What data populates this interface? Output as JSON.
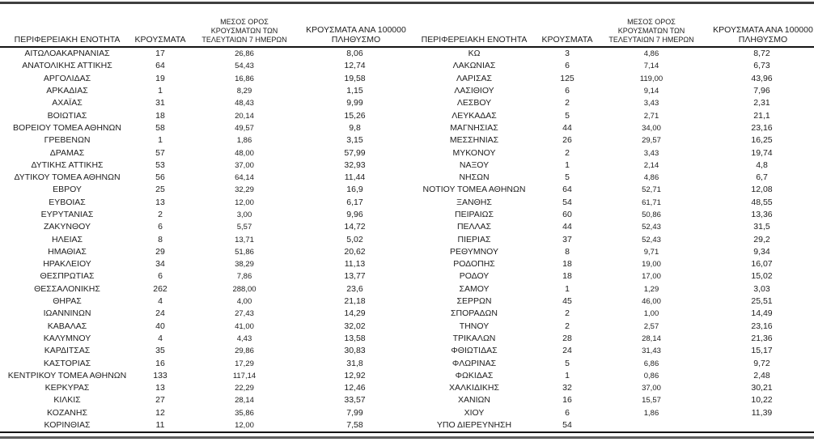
{
  "colors": {
    "text": "#1d1d1d",
    "top_rule": "#3f3f3f",
    "header_rule": "#141414",
    "bottom_rule": "#5f5f5f",
    "background": "#ffffff"
  },
  "chart_data": {
    "type": "table",
    "column_headers": [
      "ΠΕΡΙΦΕΡΕΙΑΚΗ ΕΝΟΤΗΤΑ",
      "ΚΡΟΥΣΜΑΤΑ",
      "ΜΕΣΟΣ ΟΡΟΣ ΚΡΟΥΣΜΑΤΩΝ ΤΩΝ ΤΕΛΕΥΤΑΙΩΝ 7 ΗΜΕΡΩΝ",
      "ΚΡΟΥΣΜΑΤΑ ΑΝΑ 100000 ΠΛΗΘΥΣΜΟ"
    ],
    "left_table": {
      "rows": [
        [
          "ΑΙΤΩΛΟΑΚΑΡΝΑΝΙΑΣ",
          "17",
          "26,86",
          "8,06"
        ],
        [
          "ΑΝΑΤΟΛΙΚΗΣ ΑΤΤΙΚΗΣ",
          "64",
          "54,43",
          "12,74"
        ],
        [
          "ΑΡΓΟΛΙΔΑΣ",
          "19",
          "16,86",
          "19,58"
        ],
        [
          "ΑΡΚΑΔΙΑΣ",
          "1",
          "8,29",
          "1,15"
        ],
        [
          "ΑΧΑΪΑΣ",
          "31",
          "48,43",
          "9,99"
        ],
        [
          "ΒΟΙΩΤΙΑΣ",
          "18",
          "20,14",
          "15,26"
        ],
        [
          "ΒΟΡΕΙΟΥ ΤΟΜΕΑ ΑΘΗΝΩΝ",
          "58",
          "49,57",
          "9,8"
        ],
        [
          "ΓΡΕΒΕΝΩΝ",
          "1",
          "1,86",
          "3,15"
        ],
        [
          "ΔΡΑΜΑΣ",
          "57",
          "48,00",
          "57,99"
        ],
        [
          "ΔΥΤΙΚΗΣ ΑΤΤΙΚΗΣ",
          "53",
          "37,00",
          "32,93"
        ],
        [
          "ΔΥΤΙΚΟΥ ΤΟΜΕΑ ΑΘΗΝΩΝ",
          "56",
          "64,14",
          "11,44"
        ],
        [
          "ΕΒΡΟΥ",
          "25",
          "32,29",
          "16,9"
        ],
        [
          "ΕΥΒΟΙΑΣ",
          "13",
          "12,00",
          "6,17"
        ],
        [
          "ΕΥΡΥΤΑΝΙΑΣ",
          "2",
          "3,00",
          "9,96"
        ],
        [
          "ΖΑΚΥΝΘΟΥ",
          "6",
          "5,57",
          "14,72"
        ],
        [
          "ΗΛΕΙΑΣ",
          "8",
          "13,71",
          "5,02"
        ],
        [
          "ΗΜΑΘΙΑΣ",
          "29",
          "51,86",
          "20,62"
        ],
        [
          "ΗΡΑΚΛΕΙΟΥ",
          "34",
          "38,29",
          "11,13"
        ],
        [
          "ΘΕΣΠΡΩΤΙΑΣ",
          "6",
          "7,86",
          "13,77"
        ],
        [
          "ΘΕΣΣΑΛΟΝΙΚΗΣ",
          "262",
          "288,00",
          "23,6"
        ],
        [
          "ΘΗΡΑΣ",
          "4",
          "4,00",
          "21,18"
        ],
        [
          "ΙΩΑΝΝΙΝΩΝ",
          "24",
          "27,43",
          "14,29"
        ],
        [
          "ΚΑΒΑΛΑΣ",
          "40",
          "41,00",
          "32,02"
        ],
        [
          "ΚΑΛΥΜΝΟΥ",
          "4",
          "4,43",
          "13,58"
        ],
        [
          "ΚΑΡΔΙΤΣΑΣ",
          "35",
          "29,86",
          "30,83"
        ],
        [
          "ΚΑΣΤΟΡΙΑΣ",
          "16",
          "17,29",
          "31,8"
        ],
        [
          "ΚΕΝΤΡΙΚΟΥ ΤΟΜΕΑ ΑΘΗΝΩΝ",
          "133",
          "117,14",
          "12,92"
        ],
        [
          "ΚΕΡΚΥΡΑΣ",
          "13",
          "22,29",
          "12,46"
        ],
        [
          "ΚΙΛΚΙΣ",
          "27",
          "28,14",
          "33,57"
        ],
        [
          "ΚΟΖΑΝΗΣ",
          "12",
          "35,86",
          "7,99"
        ],
        [
          "ΚΟΡΙΝΘΙΑΣ",
          "11",
          "12,00",
          "7,58"
        ]
      ]
    },
    "right_table": {
      "rows": [
        [
          "ΚΩ",
          "3",
          "4,86",
          "8,72"
        ],
        [
          "ΛΑΚΩΝΙΑΣ",
          "6",
          "7,14",
          "6,73"
        ],
        [
          "ΛΑΡΙΣΑΣ",
          "125",
          "119,00",
          "43,96"
        ],
        [
          "ΛΑΣΙΘΙΟΥ",
          "6",
          "9,14",
          "7,96"
        ],
        [
          "ΛΕΣΒΟΥ",
          "2",
          "3,43",
          "2,31"
        ],
        [
          "ΛΕΥΚΑΔΑΣ",
          "5",
          "2,71",
          "21,1"
        ],
        [
          "ΜΑΓΝΗΣΙΑΣ",
          "44",
          "34,00",
          "23,16"
        ],
        [
          "ΜΕΣΣΗΝΙΑΣ",
          "26",
          "29,57",
          "16,25"
        ],
        [
          "ΜΥΚΟΝΟΥ",
          "2",
          "3,43",
          "19,74"
        ],
        [
          "ΝΑΞΟΥ",
          "1",
          "2,14",
          "4,8"
        ],
        [
          "ΝΗΣΩΝ",
          "5",
          "4,86",
          "6,7"
        ],
        [
          "ΝΟΤΙΟΥ ΤΟΜΕΑ ΑΘΗΝΩΝ",
          "64",
          "52,71",
          "12,08"
        ],
        [
          "ΞΑΝΘΗΣ",
          "54",
          "61,71",
          "48,55"
        ],
        [
          "ΠΕΙΡΑΙΩΣ",
          "60",
          "50,86",
          "13,36"
        ],
        [
          "ΠΕΛΛΑΣ",
          "44",
          "52,43",
          "31,5"
        ],
        [
          "ΠΙΕΡΙΑΣ",
          "37",
          "52,43",
          "29,2"
        ],
        [
          "ΡΕΘΥΜΝΟΥ",
          "8",
          "9,71",
          "9,34"
        ],
        [
          "ΡΟΔΟΠΗΣ",
          "18",
          "19,00",
          "16,07"
        ],
        [
          "ΡΟΔΟΥ",
          "18",
          "17,00",
          "15,02"
        ],
        [
          "ΣΑΜΟΥ",
          "1",
          "1,29",
          "3,03"
        ],
        [
          "ΣΕΡΡΩΝ",
          "45",
          "46,00",
          "25,51"
        ],
        [
          "ΣΠΟΡΑΔΩΝ",
          "2",
          "1,00",
          "14,49"
        ],
        [
          "ΤΗΝΟΥ",
          "2",
          "2,57",
          "23,16"
        ],
        [
          "ΤΡΙΚΑΛΩΝ",
          "28",
          "28,14",
          "21,36"
        ],
        [
          "ΦΘΙΩΤΙΔΑΣ",
          "24",
          "31,43",
          "15,17"
        ],
        [
          "ΦΛΩΡΙΝΑΣ",
          "5",
          "6,86",
          "9,72"
        ],
        [
          "ΦΩΚΙΔΑΣ",
          "1",
          "0,86",
          "2,48"
        ],
        [
          "ΧΑΛΚΙΔΙΚΗΣ",
          "32",
          "37,00",
          "30,21"
        ],
        [
          "ΧΑΝΙΩΝ",
          "16",
          "15,57",
          "10,22"
        ],
        [
          "ΧΙΟΥ",
          "6",
          "1,86",
          "11,39"
        ],
        [
          "ΥΠΟ ΔΙΕΡΕΥΝΗΣΗ",
          "54",
          "",
          ""
        ]
      ]
    }
  }
}
